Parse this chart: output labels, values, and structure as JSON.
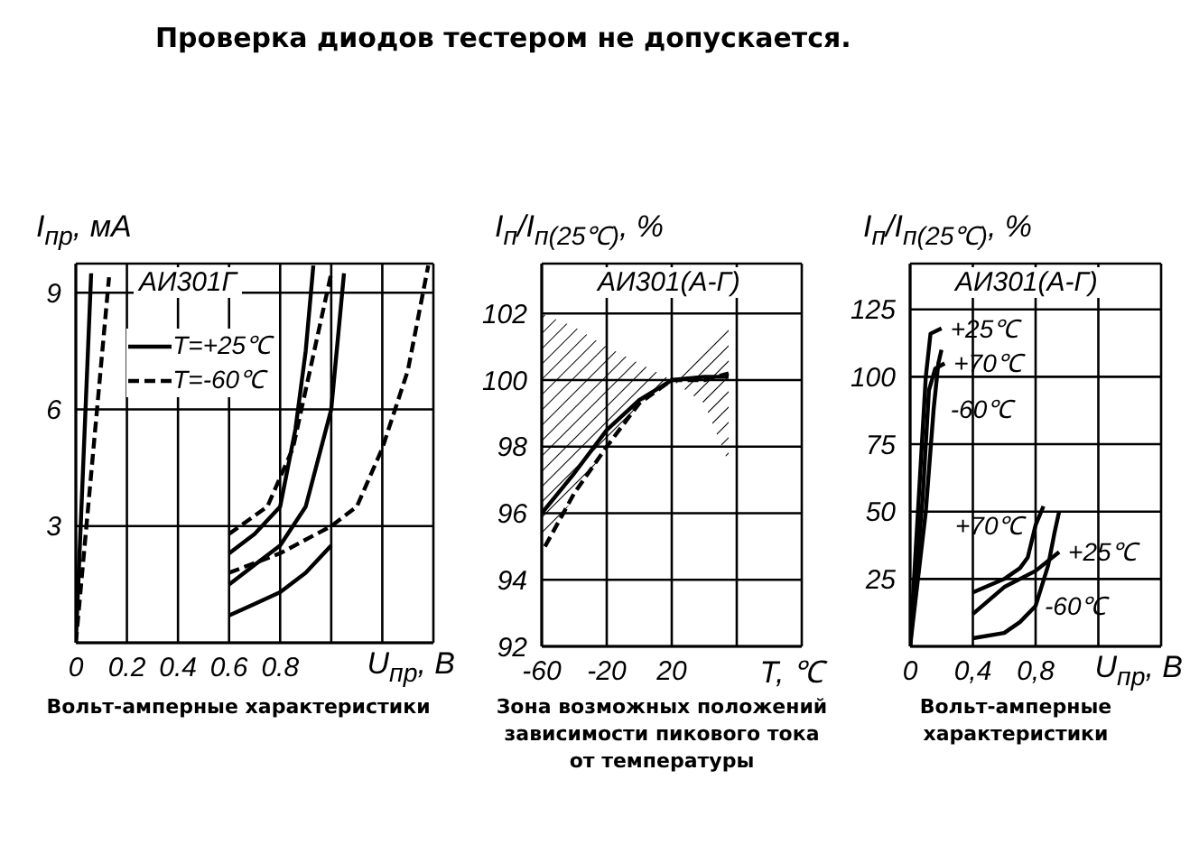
{
  "chart_data": [
    {
      "type": "line",
      "subtitle": "Проверка диодов тестером не допускается.",
      "title": "АИ301Г",
      "xlabel": "U$_{пр}$, В",
      "ylabel": "I$_{пр}$, мА",
      "annotations": [
        "Вольт-амперные характеристики"
      ],
      "xlim": [
        0,
        1.4
      ],
      "xticks": [
        0,
        0.2,
        0.4,
        0.6,
        0.8,
        {
          "value": 1.0,
          "label": null
        },
        {
          "value": 1.2,
          "label": null
        },
        {
          "value": 1.4,
          "label": null
        }
      ],
      "ylim": [
        0,
        9.75
      ],
      "yticks": [
        3,
        6,
        9
      ],
      "grid": true,
      "marker": "none",
      "legend": "top left",
      "series": [
        {
          "name": "T=+25℃",
          "color": "#000000",
          "line_style": "solid",
          "x": [
            0,
            0.06,
            0.3,
            0.6,
            0.7,
            0.8,
            0.86,
            0.9,
            0.93
          ],
          "values": [
            0,
            9.5,
            null,
            2.3,
            2.8,
            3.5,
            5.5,
            7.5,
            9.7
          ]
        },
        {
          "color": "#000000",
          "line_style": "solid",
          "x": [
            0.6,
            0.7,
            0.8,
            0.9,
            1.0,
            1.05
          ],
          "values": [
            1.5,
            2,
            2.5,
            3.5,
            6,
            9.5
          ]
        },
        {
          "color": "#000000",
          "line_style": "solid",
          "x": [
            0.6,
            0.7,
            0.8,
            0.9,
            1.0
          ],
          "values": [
            0.7,
            1,
            1.3,
            1.8,
            2.5
          ]
        },
        {
          "name": "T=-60℃",
          "color": "#000000",
          "line_style": "dashed",
          "x": [
            0,
            0.13,
            0.3,
            0.6,
            0.75,
            0.85,
            0.9,
            0.95,
            1.0
          ],
          "values": [
            0,
            9.4,
            null,
            2.8,
            3.5,
            5,
            6.5,
            8,
            9.5
          ]
        },
        {
          "color": "#000000",
          "line_style": "dashed",
          "x": [
            0.6,
            0.8,
            1.0,
            1.1,
            1.2,
            1.3,
            1.38
          ],
          "values": [
            1.8,
            2.3,
            3,
            3.5,
            5,
            7,
            9.7
          ]
        }
      ]
    },
    {
      "type": "line",
      "title": "АИ301(А-Г)",
      "xlabel": "T, ℃",
      "ylabel": "I$_{п}$/I$_{п(25℃)}$, %",
      "annotations": [
        "Зона возможных положений зависимости пикового тока от температуры"
      ],
      "xlim": [
        -60,
        100
      ],
      "xticks": [
        -60,
        -20,
        20,
        {
          "value": 60,
          "label": null
        },
        {
          "value": 100,
          "label": null
        }
      ],
      "ylim": [
        92,
        103.5
      ],
      "yticks": [
        92,
        94,
        96,
        98,
        100,
        102
      ],
      "grid": true,
      "marker": "none",
      "series": [
        {
          "color": "#000000",
          "line_style": "solid",
          "x": [
            -60,
            -40,
            -20,
            0,
            20,
            40,
            55
          ],
          "values": [
            96,
            97.2,
            98.5,
            99.4,
            100,
            100.1,
            100.1
          ],
          "lower": [
            95,
            96.5,
            98,
            99.3,
            100,
            99.3,
            97.5
          ],
          "upper": [
            102,
            101.6,
            101,
            100.5,
            100,
            100.8,
            101.8
          ]
        },
        {
          "color": "#000000",
          "line_style": "dashed",
          "x": [
            -58,
            -40,
            -20,
            0,
            20,
            40,
            55
          ],
          "values": [
            95,
            96.6,
            98,
            99.3,
            100,
            100,
            100.2
          ]
        }
      ]
    },
    {
      "type": "line",
      "title": "АИ301(А-Г)",
      "xlabel": "U$_{пр}$, В",
      "ylabel": "I$_{п}$/I$_{п(25℃)}$, %",
      "annotations": [
        "Вольт-амперные характеристики",
        {
          "text": "+25℃",
          "x": 0.2,
          "y": 118
        },
        {
          "text": "+70℃",
          "x": 0.22,
          "y": 105
        },
        {
          "text": "-60℃",
          "x": 0.2,
          "y": 88
        },
        {
          "text": "+70℃",
          "x": 0.78,
          "y": 45
        },
        {
          "text": "+25℃",
          "x": 0.95,
          "y": 35
        },
        {
          "text": "-60℃",
          "x": 0.8,
          "y": 15
        }
      ],
      "xlim": [
        0,
        1.6
      ],
      "xticks": [
        0,
        {
          "value": 0.4,
          "label": "0,4"
        },
        {
          "value": 0.8,
          "label": "0,8"
        },
        {
          "value": 1.2,
          "label": null
        }
      ],
      "ylim": [
        0,
        142
      ],
      "yticks": [
        25,
        50,
        75,
        100,
        125
      ],
      "grid": true,
      "marker": "none",
      "series": [
        {
          "color": "#000000",
          "line_style": "solid",
          "x": [
            0,
            0.06,
            0.1,
            0.13,
            0.2
          ],
          "values": [
            0,
            60,
            100,
            116,
            118
          ]
        },
        {
          "color": "#000000",
          "line_style": "solid",
          "x": [
            0,
            0.08,
            0.12,
            0.16,
            0.22
          ],
          "values": [
            0,
            55,
            95,
            103,
            105
          ]
        },
        {
          "color": "#000000",
          "line_style": "solid",
          "x": [
            0,
            0.1,
            0.15,
            0.18,
            0.2
          ],
          "values": [
            0,
            50,
            88,
            105,
            110
          ]
        },
        {
          "color": "#000000",
          "line_style": "solid",
          "x": [
            0.4,
            0.6,
            0.7,
            0.75,
            0.8,
            0.85
          ],
          "values": [
            20,
            25,
            29,
            33,
            45,
            52
          ]
        },
        {
          "color": "#000000",
          "line_style": "solid",
          "x": [
            0.4,
            0.6,
            0.8,
            0.95
          ],
          "values": [
            12,
            22,
            28,
            35
          ]
        },
        {
          "color": "#000000",
          "line_style": "solid",
          "x": [
            0.4,
            0.6,
            0.7,
            0.8,
            0.88,
            0.92,
            0.95
          ],
          "values": [
            3,
            5,
            9,
            15,
            30,
            42,
            50
          ]
        }
      ]
    }
  ]
}
